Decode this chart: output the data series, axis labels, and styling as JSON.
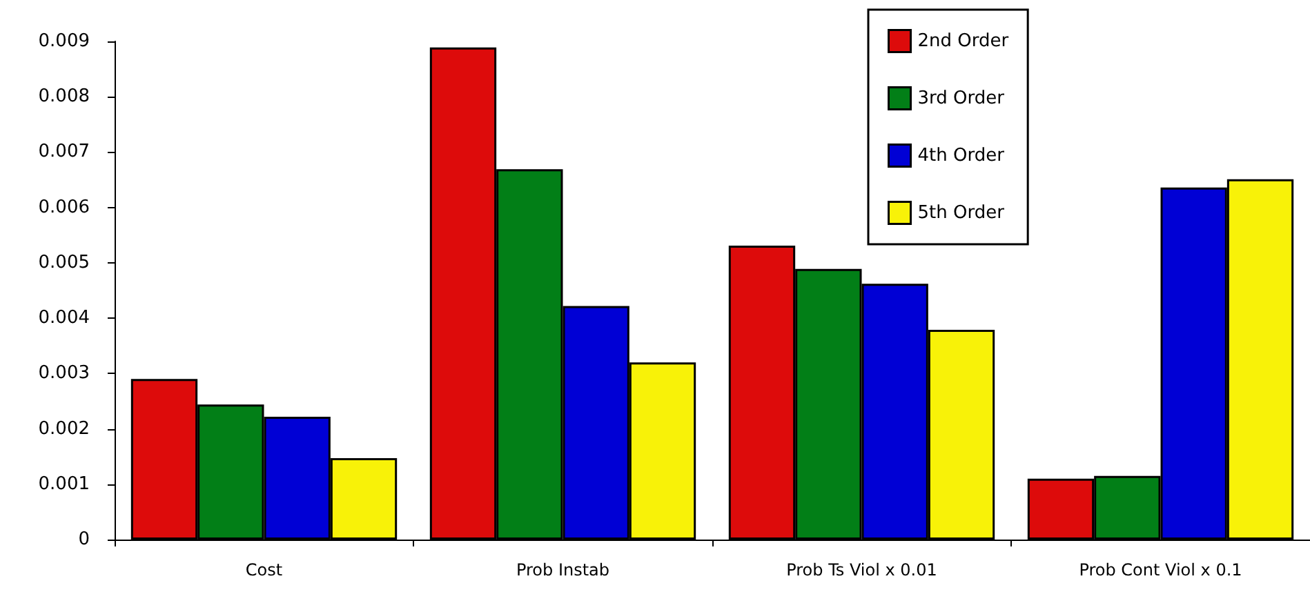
{
  "chart_data": {
    "type": "bar",
    "categories": [
      "Cost",
      "Prob Instab",
      "Prob Ts Viol x 0.01",
      "Prob Cont Viol x 0.1"
    ],
    "series": [
      {
        "name": "2nd Order",
        "color": "#dd0b0b",
        "values": [
          0.0029,
          0.00889,
          0.00531,
          0.0011
        ]
      },
      {
        "name": "3rd Order",
        "color": "#027f17",
        "values": [
          0.00244,
          0.00669,
          0.00489,
          0.00115
        ]
      },
      {
        "name": "4th Order",
        "color": "#0000d5",
        "values": [
          0.00222,
          0.00422,
          0.00462,
          0.00636
        ]
      },
      {
        "name": "5th Order",
        "color": "#f8f208",
        "values": [
          0.00147,
          0.0032,
          0.00379,
          0.00651
        ]
      }
    ],
    "ylim": [
      0,
      0.009
    ],
    "yticks": [
      0,
      0.001,
      0.002,
      0.003,
      0.004,
      0.005,
      0.006,
      0.007,
      0.008,
      0.009
    ],
    "grid": false,
    "legend": "top right"
  }
}
